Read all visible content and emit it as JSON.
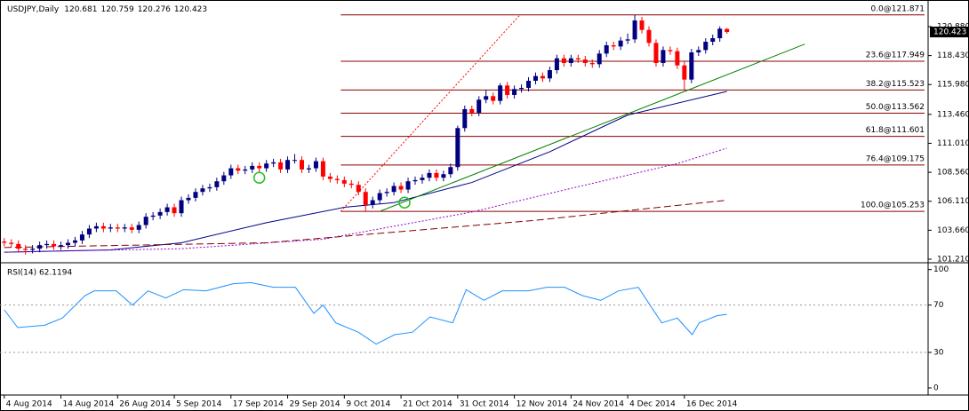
{
  "chart_data": [
    {
      "type": "candlestick",
      "title": "USDJPY,Daily",
      "open": [
        102.7,
        102.6,
        102.5,
        102.1,
        102.0,
        102.1,
        102.4,
        102.5,
        102.3,
        102.4,
        102.6,
        102.8,
        103.3,
        103.8,
        104.0,
        103.8,
        103.9,
        103.8,
        103.9,
        103.7,
        104.1,
        104.8,
        104.9,
        105.2,
        105.6,
        105.1,
        106.2,
        106.4,
        106.9,
        107.2,
        107.3,
        107.8,
        108.3,
        108.9,
        108.7,
        108.8,
        109.1,
        108.9,
        109.3,
        109.4,
        108.8,
        109.6,
        109.6,
        108.8,
        108.9,
        109.5,
        108.2,
        108.0,
        107.9,
        107.6,
        107.5,
        106.9,
        105.8,
        106.2,
        106.8,
        106.9,
        107.4,
        107.1,
        107.8,
        107.9,
        108.1,
        108.5,
        108.1,
        108.4,
        109.0,
        112.3,
        113.9,
        113.6,
        114.7,
        115.0,
        114.6,
        115.9,
        115.1,
        115.6,
        115.7,
        116.3,
        116.7,
        116.5,
        117.2,
        118.2,
        117.8,
        118.2,
        118.1,
        117.8,
        117.7,
        118.6,
        119.3,
        119.2,
        119.7,
        119.8,
        121.4,
        120.6,
        119.5,
        117.8,
        118.9,
        118.8,
        117.6,
        116.4,
        118.7,
        118.9,
        119.6,
        119.9,
        120.681
      ],
      "high": [
        103.0,
        102.9,
        102.8,
        102.4,
        102.4,
        102.7,
        102.8,
        102.8,
        102.7,
        102.9,
        103.1,
        103.6,
        104.1,
        104.3,
        104.3,
        104.2,
        104.2,
        104.2,
        104.2,
        104.4,
        105.1,
        105.2,
        105.5,
        105.9,
        105.9,
        106.5,
        106.7,
        107.2,
        107.5,
        107.6,
        108.1,
        108.6,
        109.2,
        109.2,
        109.1,
        109.4,
        109.4,
        109.6,
        109.7,
        109.7,
        109.9,
        110.1,
        109.9,
        109.2,
        109.8,
        109.8,
        108.5,
        108.3,
        108.2,
        107.9,
        107.8,
        107.2,
        106.5,
        107.1,
        107.2,
        107.7,
        107.7,
        108.1,
        108.2,
        108.4,
        108.8,
        108.8,
        108.7,
        109.3,
        112.5,
        114.2,
        114.2,
        115.0,
        115.5,
        115.3,
        116.1,
        116.2,
        115.9,
        116.0,
        116.6,
        117.0,
        117.0,
        117.5,
        118.5,
        118.5,
        118.5,
        118.5,
        118.4,
        118.1,
        118.9,
        119.6,
        119.6,
        120.0,
        120.3,
        121.871,
        121.7,
        120.9,
        119.8,
        119.2,
        119.2,
        119.1,
        117.9,
        119.0,
        119.2,
        119.9,
        120.2,
        120.9,
        120.759
      ],
      "low": [
        102.3,
        102.2,
        101.8,
        101.6,
        101.7,
        101.8,
        102.1,
        102.0,
        102.0,
        102.1,
        102.3,
        102.5,
        103.0,
        103.5,
        103.5,
        103.5,
        103.5,
        103.5,
        103.4,
        103.4,
        103.8,
        104.5,
        104.6,
        104.9,
        104.8,
        104.8,
        105.9,
        106.1,
        106.6,
        106.9,
        107.0,
        107.5,
        108.0,
        108.4,
        108.4,
        108.5,
        108.6,
        108.6,
        109.0,
        108.5,
        108.5,
        109.3,
        108.5,
        108.5,
        108.6,
        107.9,
        107.7,
        107.6,
        107.3,
        107.2,
        106.6,
        105.253,
        105.5,
        105.9,
        106.5,
        106.6,
        106.8,
        106.8,
        107.5,
        107.6,
        107.8,
        107.8,
        107.8,
        108.1,
        108.7,
        112.0,
        113.3,
        113.3,
        114.4,
        114.3,
        114.3,
        114.8,
        114.8,
        115.3,
        115.4,
        116.0,
        116.2,
        116.2,
        116.9,
        117.5,
        117.5,
        117.8,
        117.5,
        117.4,
        117.4,
        118.3,
        118.9,
        118.9,
        119.4,
        119.5,
        120.3,
        119.2,
        117.5,
        117.5,
        118.5,
        117.3,
        115.55,
        116.1,
        118.4,
        118.6,
        119.3,
        119.6,
        120.276
      ],
      "close": [
        102.6,
        102.5,
        102.1,
        102.0,
        102.1,
        102.4,
        102.5,
        102.3,
        102.4,
        102.6,
        102.8,
        103.3,
        103.8,
        104.0,
        103.8,
        103.9,
        103.8,
        103.9,
        103.7,
        104.1,
        104.8,
        104.9,
        105.2,
        105.6,
        105.1,
        106.2,
        106.4,
        106.9,
        107.2,
        107.3,
        107.8,
        108.3,
        108.9,
        108.7,
        108.8,
        109.1,
        108.9,
        109.3,
        109.4,
        108.8,
        109.6,
        109.6,
        108.8,
        108.9,
        109.5,
        108.2,
        108.0,
        107.9,
        107.6,
        107.5,
        106.9,
        105.8,
        106.2,
        106.8,
        106.9,
        107.4,
        107.1,
        107.8,
        107.9,
        108.1,
        108.5,
        108.1,
        108.4,
        109.0,
        112.3,
        113.9,
        113.6,
        114.7,
        115.0,
        114.6,
        115.9,
        115.1,
        115.6,
        115.7,
        116.3,
        116.7,
        116.5,
        117.2,
        118.2,
        117.8,
        118.2,
        118.1,
        117.8,
        117.7,
        118.6,
        119.3,
        119.2,
        119.7,
        119.8,
        121.4,
        120.6,
        119.5,
        117.8,
        118.9,
        118.8,
        117.6,
        116.4,
        118.7,
        118.9,
        119.6,
        119.9,
        120.7,
        120.423
      ],
      "color_up": "#000080",
      "color_down": "#ff0000",
      "xlim": [
        -0.6,
        130.4
      ],
      "xticks": [
        {
          "value": 0,
          "label": "4 Aug 2014"
        },
        {
          "value": 8,
          "label": "14 Aug 2014"
        },
        {
          "value": 16,
          "label": "26 Aug 2014"
        },
        {
          "value": 24,
          "label": "5 Sep 2014"
        },
        {
          "value": 32,
          "label": "17 Sep 2014"
        },
        {
          "value": 40,
          "label": "29 Sep 2014"
        },
        {
          "value": 48,
          "label": "9 Oct 2014"
        },
        {
          "value": 56,
          "label": "21 Oct 2014"
        },
        {
          "value": 64,
          "label": "31 Oct 2014"
        },
        {
          "value": 72,
          "label": "12 Nov 2014"
        },
        {
          "value": 80,
          "label": "24 Nov 2014"
        },
        {
          "value": 88,
          "label": "4 Dec 2014"
        },
        {
          "value": 96,
          "label": "16 Dec 2014"
        }
      ],
      "ylim": [
        101.06,
        122.83
      ],
      "yticks": [
        {
          "value": 101.21,
          "label": "101.210"
        },
        {
          "value": 103.66,
          "label": "103.660"
        },
        {
          "value": 106.11,
          "label": "106.110"
        },
        {
          "value": 108.56,
          "label": "108.560"
        },
        {
          "value": 111.01,
          "label": "111.010"
        },
        {
          "value": 113.46,
          "label": "113.460"
        },
        {
          "value": 115.98,
          "label": "115.980"
        },
        {
          "value": 118.43,
          "label": "118.430"
        },
        {
          "value": 120.88,
          "label": "120.880"
        }
      ],
      "lines": [
        {
          "color": "#00008b",
          "style": "solid",
          "x": [
            0,
            15,
            25,
            37,
            48,
            55,
            66,
            77,
            88,
            102
          ],
          "values": [
            101.8,
            102.0,
            102.6,
            104.3,
            105.6,
            106.0,
            107.7,
            110.3,
            113.4,
            115.4
          ]
        },
        {
          "color": "#9400d3",
          "style": "dotted",
          "x": [
            0,
            25,
            45,
            55,
            66,
            80,
            95,
            102
          ],
          "values": [
            101.8,
            102.1,
            102.9,
            104.0,
            105.2,
            107.2,
            109.3,
            110.6
          ]
        },
        {
          "color": "#800000",
          "style": "dashed",
          "x": [
            0,
            37,
            53,
            75,
            102
          ],
          "values": [
            102.2,
            102.6,
            103.4,
            104.5,
            106.2
          ]
        }
      ],
      "trendlines": [
        {
          "color": "#ff0000",
          "style": "dotted",
          "x": [
            47.5,
            72.8
          ],
          "values": [
            105.253,
            121.871
          ]
        },
        {
          "color": "#008000",
          "style": "solid",
          "x": [
            53,
            113
          ],
          "values": [
            105.253,
            119.4
          ]
        }
      ],
      "fibonacci": [
        {
          "label": "0.0@121.871",
          "value": 121.871
        },
        {
          "label": "23.6@117.949",
          "value": 117.949
        },
        {
          "label": "38.2@115.523",
          "value": 115.523
        },
        {
          "label": "50.0@113.562",
          "value": 113.562
        },
        {
          "label": "61.8@111.601",
          "value": 111.601
        },
        {
          "label": "76.4@109.175",
          "value": 109.175
        },
        {
          "label": "100.0@105.253",
          "value": 105.253
        }
      ],
      "fib_color": "#8b0000",
      "signals": {
        "color": "#22c022",
        "x": [
          36,
          56.5
        ],
        "values": [
          108.1,
          106.0
        ]
      }
    },
    {
      "type": "line",
      "title": "RSI(14) 62.1194",
      "series": [
        {
          "color": "#1e90ff",
          "x": [
            0,
            1.9,
            5.7,
            8.2,
            11.4,
            12.7,
            15.8,
            18.1,
            20.3,
            22.8,
            25.3,
            28.5,
            32.3,
            34.8,
            38,
            41.1,
            43.7,
            45,
            46.8,
            50,
            52.5,
            55.1,
            57.6,
            60.1,
            63.3,
            65.2,
            67.7,
            70.3,
            74,
            76.6,
            79.1,
            81.6,
            84.2,
            86.7,
            89.5,
            92.8,
            95,
            97.1,
            98.1,
            100.6,
            102
          ],
          "values": [
            66,
            51,
            53,
            59,
            78,
            82,
            82,
            70,
            82,
            76,
            83,
            82,
            88,
            89,
            85,
            85,
            63,
            70,
            55,
            47,
            37,
            45,
            47,
            60,
            55,
            83,
            74,
            82,
            82,
            85,
            85,
            78,
            74,
            82,
            85,
            55,
            59,
            45,
            55,
            61,
            62.1194
          ]
        }
      ],
      "ylim": [
        -6,
        105
      ],
      "yticks": [
        0,
        30,
        70,
        100
      ],
      "level_lines": [
        30,
        70
      ]
    }
  ]
}
